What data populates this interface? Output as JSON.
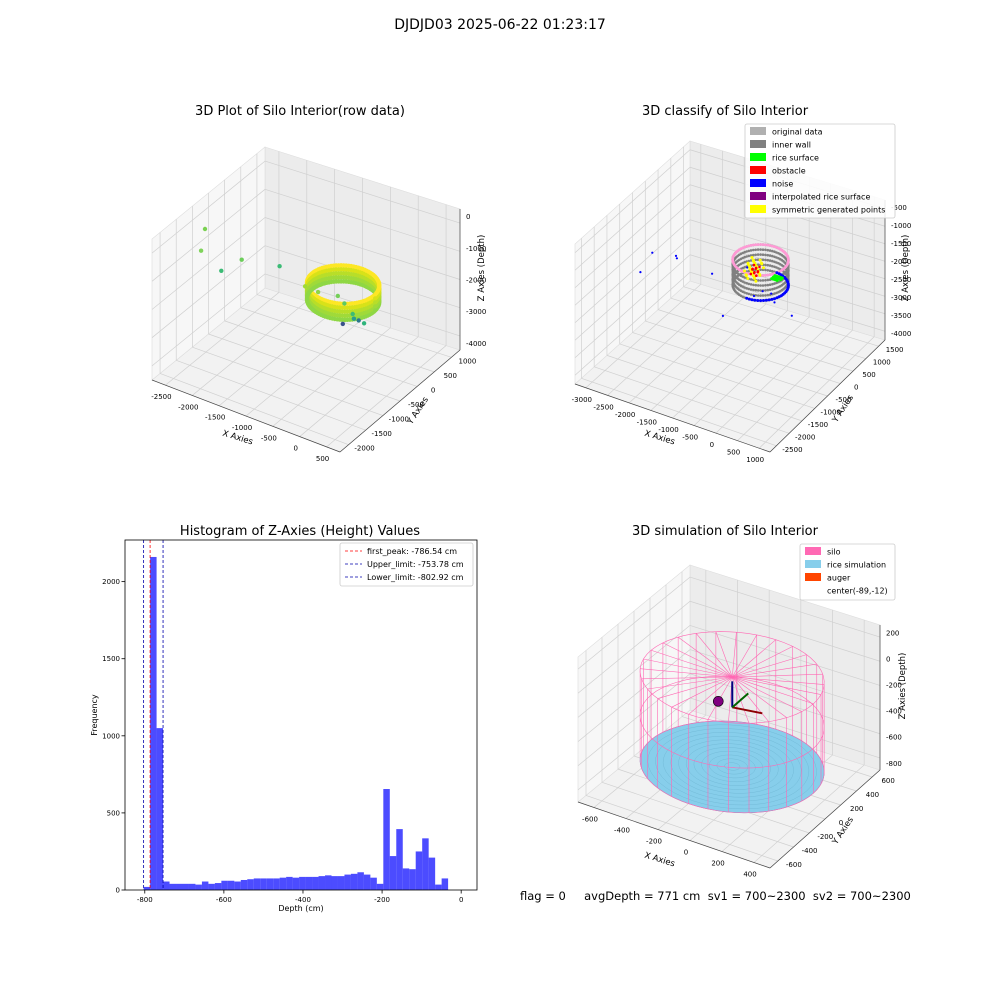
{
  "figure_title": "DJDJD03 2025-06-22 01:23:17",
  "status_text": "flag = 0     avgDepth = 771 cm  sv1 = 700~2300  sv2 = 700~2300",
  "colors": {
    "silo": "#ff69b4",
    "rice_simulation": "#87ceeb",
    "auger": "#ff4500",
    "hist": "#0000ff",
    "original": "#b0b0b0",
    "inner_wall": "#808080",
    "rice_surface": "#00ff00",
    "obstacle": "#ff0000",
    "noise": "#0000ff",
    "interpolated": "#800080",
    "symmetric": "#ffff00"
  },
  "chart_data": [
    {
      "type": "scatter",
      "title": "3D Plot of Silo Interior(row data)",
      "xlabel": "X Axies",
      "ylabel": "Y Axies",
      "zlabel": "Z Axies (Depth)",
      "x_ticks": [
        "-2500",
        "-2000",
        "-1500",
        "-1000",
        "-500",
        "0",
        "500"
      ],
      "y_ticks": [
        "-2000",
        "-1500",
        "-1000",
        "-500",
        "0",
        "500",
        "1000"
      ],
      "z_ticks": [
        "0",
        "-1000",
        "-2000",
        "-3000",
        "-4000"
      ],
      "xlim": [
        -2600,
        600
      ],
      "ylim": [
        -2100,
        1200
      ],
      "zlim": [
        -4300,
        100
      ],
      "grid": true,
      "points": [
        {
          "x": -2000,
          "y": 800,
          "z": -200,
          "c": "#7fd35a"
        },
        {
          "x": -2400,
          "y": 0,
          "z": -500,
          "c": "#7ad151"
        },
        {
          "x": -1900,
          "y": -200,
          "z": -1300,
          "c": "#6ccd5a"
        },
        {
          "x": -2300,
          "y": -300,
          "z": -2000,
          "c": "#3bbb75"
        },
        {
          "x": -1500,
          "y": -600,
          "z": -1600,
          "c": "#3bbb75"
        },
        {
          "x": -800,
          "y": -1200,
          "z": -3500,
          "c": "#3b528b"
        },
        {
          "x": -600,
          "y": 200,
          "z": -900,
          "c": "#a0da39"
        },
        {
          "x": -500,
          "y": 0,
          "z": -1200,
          "c": "#8ed645"
        },
        {
          "x": -300,
          "y": -400,
          "z": -1800,
          "c": "#5ec962"
        },
        {
          "x": -200,
          "y": -500,
          "z": -2300,
          "c": "#2a9d8f"
        },
        {
          "x": -350,
          "y": -300,
          "z": -1500,
          "c": "#74cf58"
        },
        {
          "x": -100,
          "y": -300,
          "z": -1900,
          "c": "#3dbc74"
        },
        {
          "x": -150,
          "y": -700,
          "z": -2600,
          "c": "#2fb47c"
        },
        {
          "x": -300,
          "y": -800,
          "z": -2700,
          "c": "#2a788e"
        }
      ],
      "ring": {
        "cx": -89,
        "cy": -12,
        "r": 520,
        "z_top": -700,
        "z_bot": -1200
      }
    },
    {
      "type": "scatter",
      "title": "3D classify of Silo Interior",
      "xlabel": "X Axies",
      "ylabel": "Y Axies",
      "zlabel": "Z Axies (Depth)",
      "x_ticks": [
        "-3000",
        "-2500",
        "-2000",
        "-1500",
        "-1000",
        "-500",
        "0",
        "500",
        "1000"
      ],
      "y_ticks": [
        "-2500",
        "-2000",
        "-1500",
        "-1000",
        "-500",
        "0",
        "500",
        "1000",
        "1500"
      ],
      "z_ticks": [
        "-500",
        "-1000",
        "-1500",
        "-2000",
        "-2500",
        "-3000",
        "-3500",
        "-4000"
      ],
      "xlim": [
        -3100,
        1100
      ],
      "ylim": [
        -2600,
        1700
      ],
      "zlim": [
        -4200,
        -300
      ],
      "grid": true,
      "legend": [
        "original data",
        "inner wall",
        "rice surface",
        "obstacle",
        "noise",
        "interpolated rice surface",
        "symmetric generated points"
      ],
      "noise_points": [
        {
          "x": -1500,
          "y": 700,
          "z": -600
        },
        {
          "x": -2300,
          "y": 200,
          "z": -1200
        },
        {
          "x": -2000,
          "y": -200,
          "z": -1500
        },
        {
          "x": -2900,
          "y": -400,
          "z": -2400
        },
        {
          "x": -1300,
          "y": -300,
          "z": -1700
        },
        {
          "x": -800,
          "y": -1000,
          "z": -2600
        },
        {
          "x": -500,
          "y": -800,
          "z": -2200
        },
        {
          "x": -200,
          "y": -600,
          "z": -2000
        },
        {
          "x": -300,
          "y": -900,
          "z": -2500
        },
        {
          "x": -1700,
          "y": -1400,
          "z": -3800
        },
        {
          "x": -600,
          "y": -400,
          "z": -1300
        },
        {
          "x": -100,
          "y": -1200,
          "z": -3000
        }
      ],
      "ring": {
        "cx": -89,
        "cy": -12,
        "r": 520,
        "z_top": -600,
        "z_bot": -1300
      }
    },
    {
      "type": "bar",
      "title": "Histogram of Z-Axies (Height) Values",
      "xlabel": "Depth (cm)",
      "ylabel": "Frequency",
      "xlim": [
        -850,
        40
      ],
      "ylim": [
        0,
        2270
      ],
      "x_ticks": [
        -800,
        -600,
        -400,
        -200,
        0
      ],
      "y_ticks": [
        0,
        500,
        1000,
        1500,
        2000
      ],
      "bin_start": -802.92,
      "bin_width": 16.38,
      "values": [
        20,
        2160,
        1050,
        55,
        40,
        40,
        40,
        40,
        35,
        55,
        40,
        45,
        60,
        60,
        55,
        65,
        70,
        75,
        75,
        75,
        75,
        80,
        85,
        80,
        85,
        85,
        85,
        90,
        95,
        90,
        90,
        100,
        105,
        115,
        100,
        80,
        40,
        655,
        220,
        395,
        140,
        135,
        250,
        335,
        210,
        35,
        75
      ],
      "vlines": [
        {
          "label": "first_peak: -786.54 cm",
          "x": -786.54,
          "color": "#ff0000"
        },
        {
          "label": "Upper_limit: -753.78 cm",
          "x": -753.78,
          "color": "#0000aa"
        },
        {
          "label": "Lower_limit: -802.92 cm",
          "x": -802.92,
          "color": "#0000aa"
        }
      ]
    },
    {
      "type": "scatter",
      "title": "3D simulation of Silo Interior",
      "xlabel": "X Axies",
      "ylabel": "Y Axies",
      "zlabel": "Z Axies (Depth)",
      "x_ticks": [
        "-600",
        "-400",
        "-200",
        "0",
        "200",
        "400"
      ],
      "y_ticks": [
        "-600",
        "-400",
        "-200",
        "0",
        "200",
        "400",
        "600"
      ],
      "z_ticks": [
        "200",
        "0",
        "-200",
        "-400",
        "-600",
        "-800"
      ],
      "xlim": [
        -700,
        500
      ],
      "ylim": [
        -650,
        650
      ],
      "zlim": [
        -950,
        300
      ],
      "grid": true,
      "legend": [
        "silo",
        "rice simulation",
        "auger",
        "center(-89,-12)"
      ],
      "silo": {
        "cx": -89,
        "cy": -12,
        "r": 510,
        "z_top": 0,
        "z_bot": -771
      },
      "rice_z": -771
    }
  ]
}
